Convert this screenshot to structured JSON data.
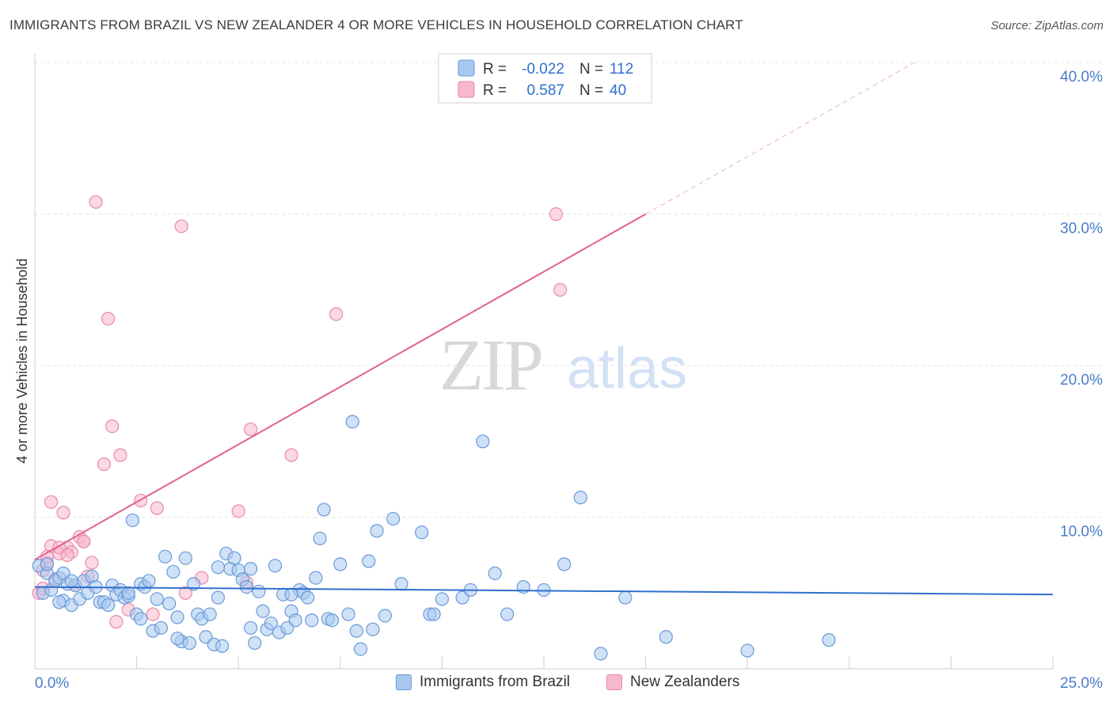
{
  "title": "IMMIGRANTS FROM BRAZIL VS NEW ZEALANDER 4 OR MORE VEHICLES IN HOUSEHOLD CORRELATION CHART",
  "source": "Source: ZipAtlas.com",
  "watermark": {
    "zip": "ZIP",
    "atlas": "atlas"
  },
  "colors": {
    "blue_fill": "#a8c8f0",
    "blue_stroke": "#6a9ad8",
    "blue_line": "#2f6fcc",
    "pink_fill": "#f7b8cc",
    "pink_stroke": "#e88aaa",
    "pink_line": "#e0628e",
    "axis_text": "#4a7cc9",
    "grid": "#e3e3e3"
  },
  "legend_box": {
    "rows": [
      {
        "series": "brazil",
        "r_label": "R =",
        "r_value": "-0.022",
        "n_label": "N =",
        "n_value": "112"
      },
      {
        "series": "nz",
        "r_label": "R =",
        "r_value": "0.587",
        "n_label": "N =",
        "n_value": "40"
      }
    ]
  },
  "chart_data": {
    "type": "scatter",
    "title": "IMMIGRANTS FROM BRAZIL VS NEW ZEALANDER 4 OR MORE VEHICLES IN HOUSEHOLD CORRELATION CHART",
    "xlabel": "",
    "ylabel": "4 or more Vehicles in Household",
    "xlim": [
      0,
      25
    ],
    "ylim": [
      0,
      40
    ],
    "x_tick_labels": [
      "0.0%",
      "25.0%"
    ],
    "y_tick_labels": [
      "10.0%",
      "20.0%",
      "30.0%",
      "40.0%"
    ],
    "y_ticks": [
      10,
      20,
      30,
      40
    ],
    "grid": true,
    "legend_position": "bottom",
    "series": [
      {
        "name": "Immigrants from Brazil",
        "key": "brazil",
        "trend": {
          "x": [
            0,
            25
          ],
          "y": [
            5.4,
            4.9
          ],
          "dashed_extension": false
        },
        "points": [
          [
            0.1,
            6.8
          ],
          [
            0.2,
            5.0
          ],
          [
            0.3,
            6.3
          ],
          [
            0.4,
            5.2
          ],
          [
            0.5,
            5.8
          ],
          [
            0.6,
            6.0
          ],
          [
            0.7,
            4.5
          ],
          [
            0.7,
            6.3
          ],
          [
            0.8,
            5.6
          ],
          [
            0.9,
            4.2
          ],
          [
            1.0,
            5.5
          ],
          [
            1.1,
            4.6
          ],
          [
            1.2,
            5.8
          ],
          [
            1.3,
            5.0
          ],
          [
            1.4,
            6.1
          ],
          [
            1.5,
            5.4
          ],
          [
            1.6,
            4.4
          ],
          [
            1.7,
            4.4
          ],
          [
            1.8,
            4.2
          ],
          [
            1.9,
            5.5
          ],
          [
            2.0,
            4.9
          ],
          [
            2.1,
            5.2
          ],
          [
            2.2,
            4.7
          ],
          [
            2.3,
            4.8
          ],
          [
            2.4,
            9.8
          ],
          [
            2.5,
            3.6
          ],
          [
            2.6,
            3.3
          ],
          [
            2.6,
            5.6
          ],
          [
            2.7,
            5.4
          ],
          [
            2.8,
            5.8
          ],
          [
            2.9,
            2.5
          ],
          [
            3.0,
            4.6
          ],
          [
            3.1,
            2.7
          ],
          [
            3.2,
            7.4
          ],
          [
            3.3,
            4.3
          ],
          [
            3.4,
            6.4
          ],
          [
            3.5,
            3.4
          ],
          [
            3.6,
            1.8
          ],
          [
            3.7,
            7.3
          ],
          [
            3.8,
            1.7
          ],
          [
            3.9,
            5.6
          ],
          [
            4.0,
            3.6
          ],
          [
            4.1,
            3.3
          ],
          [
            4.2,
            2.1
          ],
          [
            4.3,
            3.6
          ],
          [
            4.4,
            1.6
          ],
          [
            4.5,
            4.7
          ],
          [
            4.6,
            1.5
          ],
          [
            4.7,
            7.6
          ],
          [
            4.8,
            6.6
          ],
          [
            4.9,
            7.3
          ],
          [
            5.0,
            6.5
          ],
          [
            5.1,
            5.9
          ],
          [
            5.2,
            5.4
          ],
          [
            5.3,
            2.7
          ],
          [
            5.4,
            1.7
          ],
          [
            5.5,
            5.1
          ],
          [
            5.6,
            3.8
          ],
          [
            5.7,
            2.6
          ],
          [
            5.8,
            3.0
          ],
          [
            5.9,
            6.8
          ],
          [
            6.0,
            2.4
          ],
          [
            6.1,
            4.9
          ],
          [
            6.2,
            2.7
          ],
          [
            6.3,
            3.8
          ],
          [
            6.4,
            3.2
          ],
          [
            6.5,
            5.2
          ],
          [
            6.6,
            5.0
          ],
          [
            6.7,
            4.7
          ],
          [
            6.8,
            3.2
          ],
          [
            6.9,
            6.0
          ],
          [
            7.0,
            8.6
          ],
          [
            7.1,
            10.5
          ],
          [
            7.2,
            3.3
          ],
          [
            7.3,
            3.2
          ],
          [
            7.5,
            6.9
          ],
          [
            7.7,
            3.6
          ],
          [
            7.8,
            16.3
          ],
          [
            7.9,
            2.5
          ],
          [
            8.0,
            1.3
          ],
          [
            8.2,
            7.1
          ],
          [
            8.3,
            2.6
          ],
          [
            8.4,
            9.1
          ],
          [
            8.6,
            3.5
          ],
          [
            8.8,
            9.9
          ],
          [
            9.0,
            5.6
          ],
          [
            9.5,
            9.0
          ],
          [
            9.7,
            3.6
          ],
          [
            9.8,
            3.6
          ],
          [
            10.0,
            4.6
          ],
          [
            10.5,
            4.7
          ],
          [
            10.7,
            5.2
          ],
          [
            11.0,
            15.0
          ],
          [
            11.3,
            6.3
          ],
          [
            11.6,
            3.6
          ],
          [
            12.0,
            5.4
          ],
          [
            12.5,
            5.2
          ],
          [
            13.0,
            6.9
          ],
          [
            13.4,
            11.3
          ],
          [
            13.9,
            1.0
          ],
          [
            14.5,
            4.7
          ],
          [
            15.5,
            2.1
          ],
          [
            17.5,
            1.2
          ],
          [
            19.5,
            1.9
          ],
          [
            0.3,
            6.9
          ],
          [
            0.6,
            4.4
          ],
          [
            2.3,
            5.0
          ],
          [
            3.5,
            2.0
          ],
          [
            4.5,
            6.7
          ],
          [
            6.3,
            4.9
          ],
          [
            5.3,
            6.6
          ],
          [
            0.9,
            5.8
          ]
        ]
      },
      {
        "name": "New Zealanders",
        "key": "nz",
        "trend": {
          "x": [
            0,
            15
          ],
          "y": [
            7.2,
            30.0
          ],
          "dashed_extension": true,
          "dashed_to_x": 21.6,
          "dashed_to_y": 40.0
        },
        "points": [
          [
            0.1,
            5.0
          ],
          [
            0.2,
            6.5
          ],
          [
            0.3,
            7.0
          ],
          [
            0.4,
            8.1
          ],
          [
            0.4,
            11.0
          ],
          [
            0.5,
            5.9
          ],
          [
            0.6,
            7.6
          ],
          [
            0.7,
            10.3
          ],
          [
            0.8,
            8.0
          ],
          [
            0.9,
            7.7
          ],
          [
            1.0,
            5.5
          ],
          [
            1.1,
            8.7
          ],
          [
            1.2,
            8.4
          ],
          [
            1.3,
            6.1
          ],
          [
            1.4,
            7.0
          ],
          [
            1.5,
            30.8
          ],
          [
            1.7,
            13.5
          ],
          [
            1.8,
            23.1
          ],
          [
            1.9,
            16.0
          ],
          [
            2.0,
            3.1
          ],
          [
            2.1,
            14.1
          ],
          [
            2.3,
            3.9
          ],
          [
            2.6,
            11.1
          ],
          [
            2.9,
            3.6
          ],
          [
            3.0,
            10.6
          ],
          [
            3.6,
            29.2
          ],
          [
            3.7,
            5.0
          ],
          [
            4.1,
            6.0
          ],
          [
            5.0,
            10.4
          ],
          [
            5.2,
            5.7
          ],
          [
            5.3,
            15.8
          ],
          [
            6.3,
            14.1
          ],
          [
            7.4,
            23.4
          ],
          [
            12.8,
            30.0
          ],
          [
            12.9,
            25.0
          ],
          [
            0.2,
            5.3
          ],
          [
            0.3,
            7.4
          ],
          [
            0.6,
            8.0
          ],
          [
            0.8,
            7.5
          ],
          [
            1.2,
            8.4
          ]
        ]
      }
    ]
  }
}
